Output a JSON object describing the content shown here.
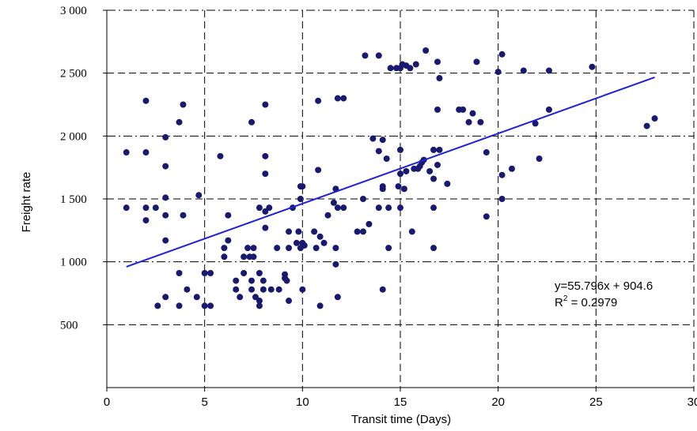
{
  "chart_data": {
    "type": "scatter",
    "xlabel": "Transit time (Days)",
    "ylabel": "Freight rate",
    "xlim": [
      0,
      30
    ],
    "ylim": [
      0,
      3000
    ],
    "x_ticks": [
      "0",
      "5",
      "10",
      "15",
      "20",
      "25",
      "30"
    ],
    "y_ticks": [
      "500",
      "1 000",
      "1 500",
      "2 000",
      "2 500",
      "3 000"
    ],
    "grid": true,
    "colors": {
      "points": "#191970",
      "trendline": "#1f1fdc"
    },
    "trendline": {
      "slope": 55.796,
      "intercept": 904.6,
      "x_range": [
        1,
        28
      ],
      "equation": "y=55.796x + 904.6",
      "r2_label": "R",
      "r2_exp": "2",
      "r2_value": " = 0.2979"
    },
    "points": [
      [
        1.0,
        1870
      ],
      [
        1.0,
        1430
      ],
      [
        2.0,
        2280
      ],
      [
        2.0,
        1870
      ],
      [
        2.0,
        1430
      ],
      [
        2.0,
        1330
      ],
      [
        2.5,
        1430
      ],
      [
        2.6,
        650
      ],
      [
        3.0,
        1990
      ],
      [
        3.0,
        1760
      ],
      [
        3.0,
        1510
      ],
      [
        3.0,
        1370
      ],
      [
        3.0,
        1170
      ],
      [
        3.0,
        720
      ],
      [
        3.7,
        2110
      ],
      [
        3.7,
        910
      ],
      [
        3.7,
        650
      ],
      [
        3.9,
        2250
      ],
      [
        3.9,
        1370
      ],
      [
        4.1,
        780
      ],
      [
        4.6,
        720
      ],
      [
        4.7,
        1530
      ],
      [
        5.0,
        910
      ],
      [
        5.0,
        650
      ],
      [
        5.3,
        910
      ],
      [
        5.3,
        650
      ],
      [
        5.8,
        1840
      ],
      [
        6.0,
        1110
      ],
      [
        6.0,
        1040
      ],
      [
        6.2,
        1370
      ],
      [
        6.2,
        1170
      ],
      [
        6.6,
        850
      ],
      [
        6.6,
        780
      ],
      [
        6.8,
        720
      ],
      [
        7.0,
        910
      ],
      [
        7.0,
        1040
      ],
      [
        7.2,
        1110
      ],
      [
        7.3,
        1040
      ],
      [
        7.4,
        2110
      ],
      [
        7.4,
        850
      ],
      [
        7.4,
        780
      ],
      [
        7.5,
        1110
      ],
      [
        7.5,
        1040
      ],
      [
        7.6,
        720
      ],
      [
        7.8,
        1430
      ],
      [
        7.8,
        910
      ],
      [
        7.8,
        690
      ],
      [
        7.8,
        650
      ],
      [
        8.0,
        850
      ],
      [
        8.0,
        780
      ],
      [
        8.1,
        2250
      ],
      [
        8.1,
        1840
      ],
      [
        8.1,
        1700
      ],
      [
        8.1,
        1400
      ],
      [
        8.1,
        1270
      ],
      [
        8.3,
        1430
      ],
      [
        8.4,
        780
      ],
      [
        8.7,
        1110
      ],
      [
        8.8,
        780
      ],
      [
        9.1,
        900
      ],
      [
        9.1,
        870
      ],
      [
        9.2,
        850
      ],
      [
        9.3,
        1240
      ],
      [
        9.3,
        1110
      ],
      [
        9.3,
        690
      ],
      [
        9.5,
        1430
      ],
      [
        9.7,
        1150
      ],
      [
        9.8,
        1240
      ],
      [
        9.9,
        1110
      ],
      [
        9.9,
        1500
      ],
      [
        9.9,
        1600
      ],
      [
        10.0,
        1600
      ],
      [
        10.0,
        1150
      ],
      [
        10.1,
        1130
      ],
      [
        10.0,
        780
      ],
      [
        10.6,
        1240
      ],
      [
        10.7,
        1110
      ],
      [
        10.8,
        2280
      ],
      [
        10.8,
        1730
      ],
      [
        10.9,
        650
      ],
      [
        10.9,
        1200
      ],
      [
        11.1,
        1150
      ],
      [
        11.3,
        1370
      ],
      [
        11.6,
        1470
      ],
      [
        11.7,
        1580
      ],
      [
        11.7,
        1110
      ],
      [
        11.7,
        980
      ],
      [
        11.8,
        720
      ],
      [
        11.8,
        2300
      ],
      [
        11.8,
        1430
      ],
      [
        12.1,
        2300
      ],
      [
        12.1,
        1430
      ],
      [
        12.8,
        1240
      ],
      [
        13.1,
        1240
      ],
      [
        13.1,
        1500
      ],
      [
        13.2,
        2640
      ],
      [
        13.4,
        1300
      ],
      [
        13.6,
        1980
      ],
      [
        13.9,
        2640
      ],
      [
        13.9,
        1880
      ],
      [
        13.9,
        1430
      ],
      [
        14.1,
        1970
      ],
      [
        14.1,
        1580
      ],
      [
        14.1,
        1600
      ],
      [
        14.1,
        780
      ],
      [
        14.3,
        1820
      ],
      [
        14.4,
        1430
      ],
      [
        14.4,
        1110
      ],
      [
        14.5,
        2540
      ],
      [
        14.8,
        2540
      ],
      [
        14.9,
        1600
      ],
      [
        15.0,
        1890
      ],
      [
        15.0,
        1700
      ],
      [
        15.0,
        1430
      ],
      [
        15.0,
        2540
      ],
      [
        15.1,
        2570
      ],
      [
        15.2,
        1580
      ],
      [
        15.3,
        1720
      ],
      [
        15.3,
        2560
      ],
      [
        15.5,
        2540
      ],
      [
        15.6,
        1240
      ],
      [
        15.7,
        1740
      ],
      [
        15.8,
        2570
      ],
      [
        15.9,
        1740
      ],
      [
        16.0,
        1760
      ],
      [
        16.1,
        1790
      ],
      [
        16.2,
        1810
      ],
      [
        16.3,
        2680
      ],
      [
        16.5,
        1720
      ],
      [
        16.7,
        1890
      ],
      [
        16.7,
        1660
      ],
      [
        16.7,
        1430
      ],
      [
        16.7,
        1110
      ],
      [
        16.9,
        2210
      ],
      [
        16.9,
        1770
      ],
      [
        16.9,
        2590
      ],
      [
        17.0,
        1890
      ],
      [
        17.0,
        2460
      ],
      [
        17.4,
        1620
      ],
      [
        18.0,
        2210
      ],
      [
        18.2,
        2210
      ],
      [
        18.5,
        2110
      ],
      [
        18.7,
        2180
      ],
      [
        18.9,
        2590
      ],
      [
        19.1,
        2110
      ],
      [
        19.4,
        1870
      ],
      [
        19.4,
        1360
      ],
      [
        20.0,
        2510
      ],
      [
        20.2,
        2650
      ],
      [
        20.2,
        1690
      ],
      [
        20.2,
        1500
      ],
      [
        20.7,
        1740
      ],
      [
        21.3,
        2520
      ],
      [
        21.9,
        2100
      ],
      [
        22.1,
        1820
      ],
      [
        22.6,
        2520
      ],
      [
        22.6,
        2210
      ],
      [
        24.8,
        2550
      ],
      [
        27.6,
        2080
      ],
      [
        28.0,
        2140
      ]
    ]
  }
}
